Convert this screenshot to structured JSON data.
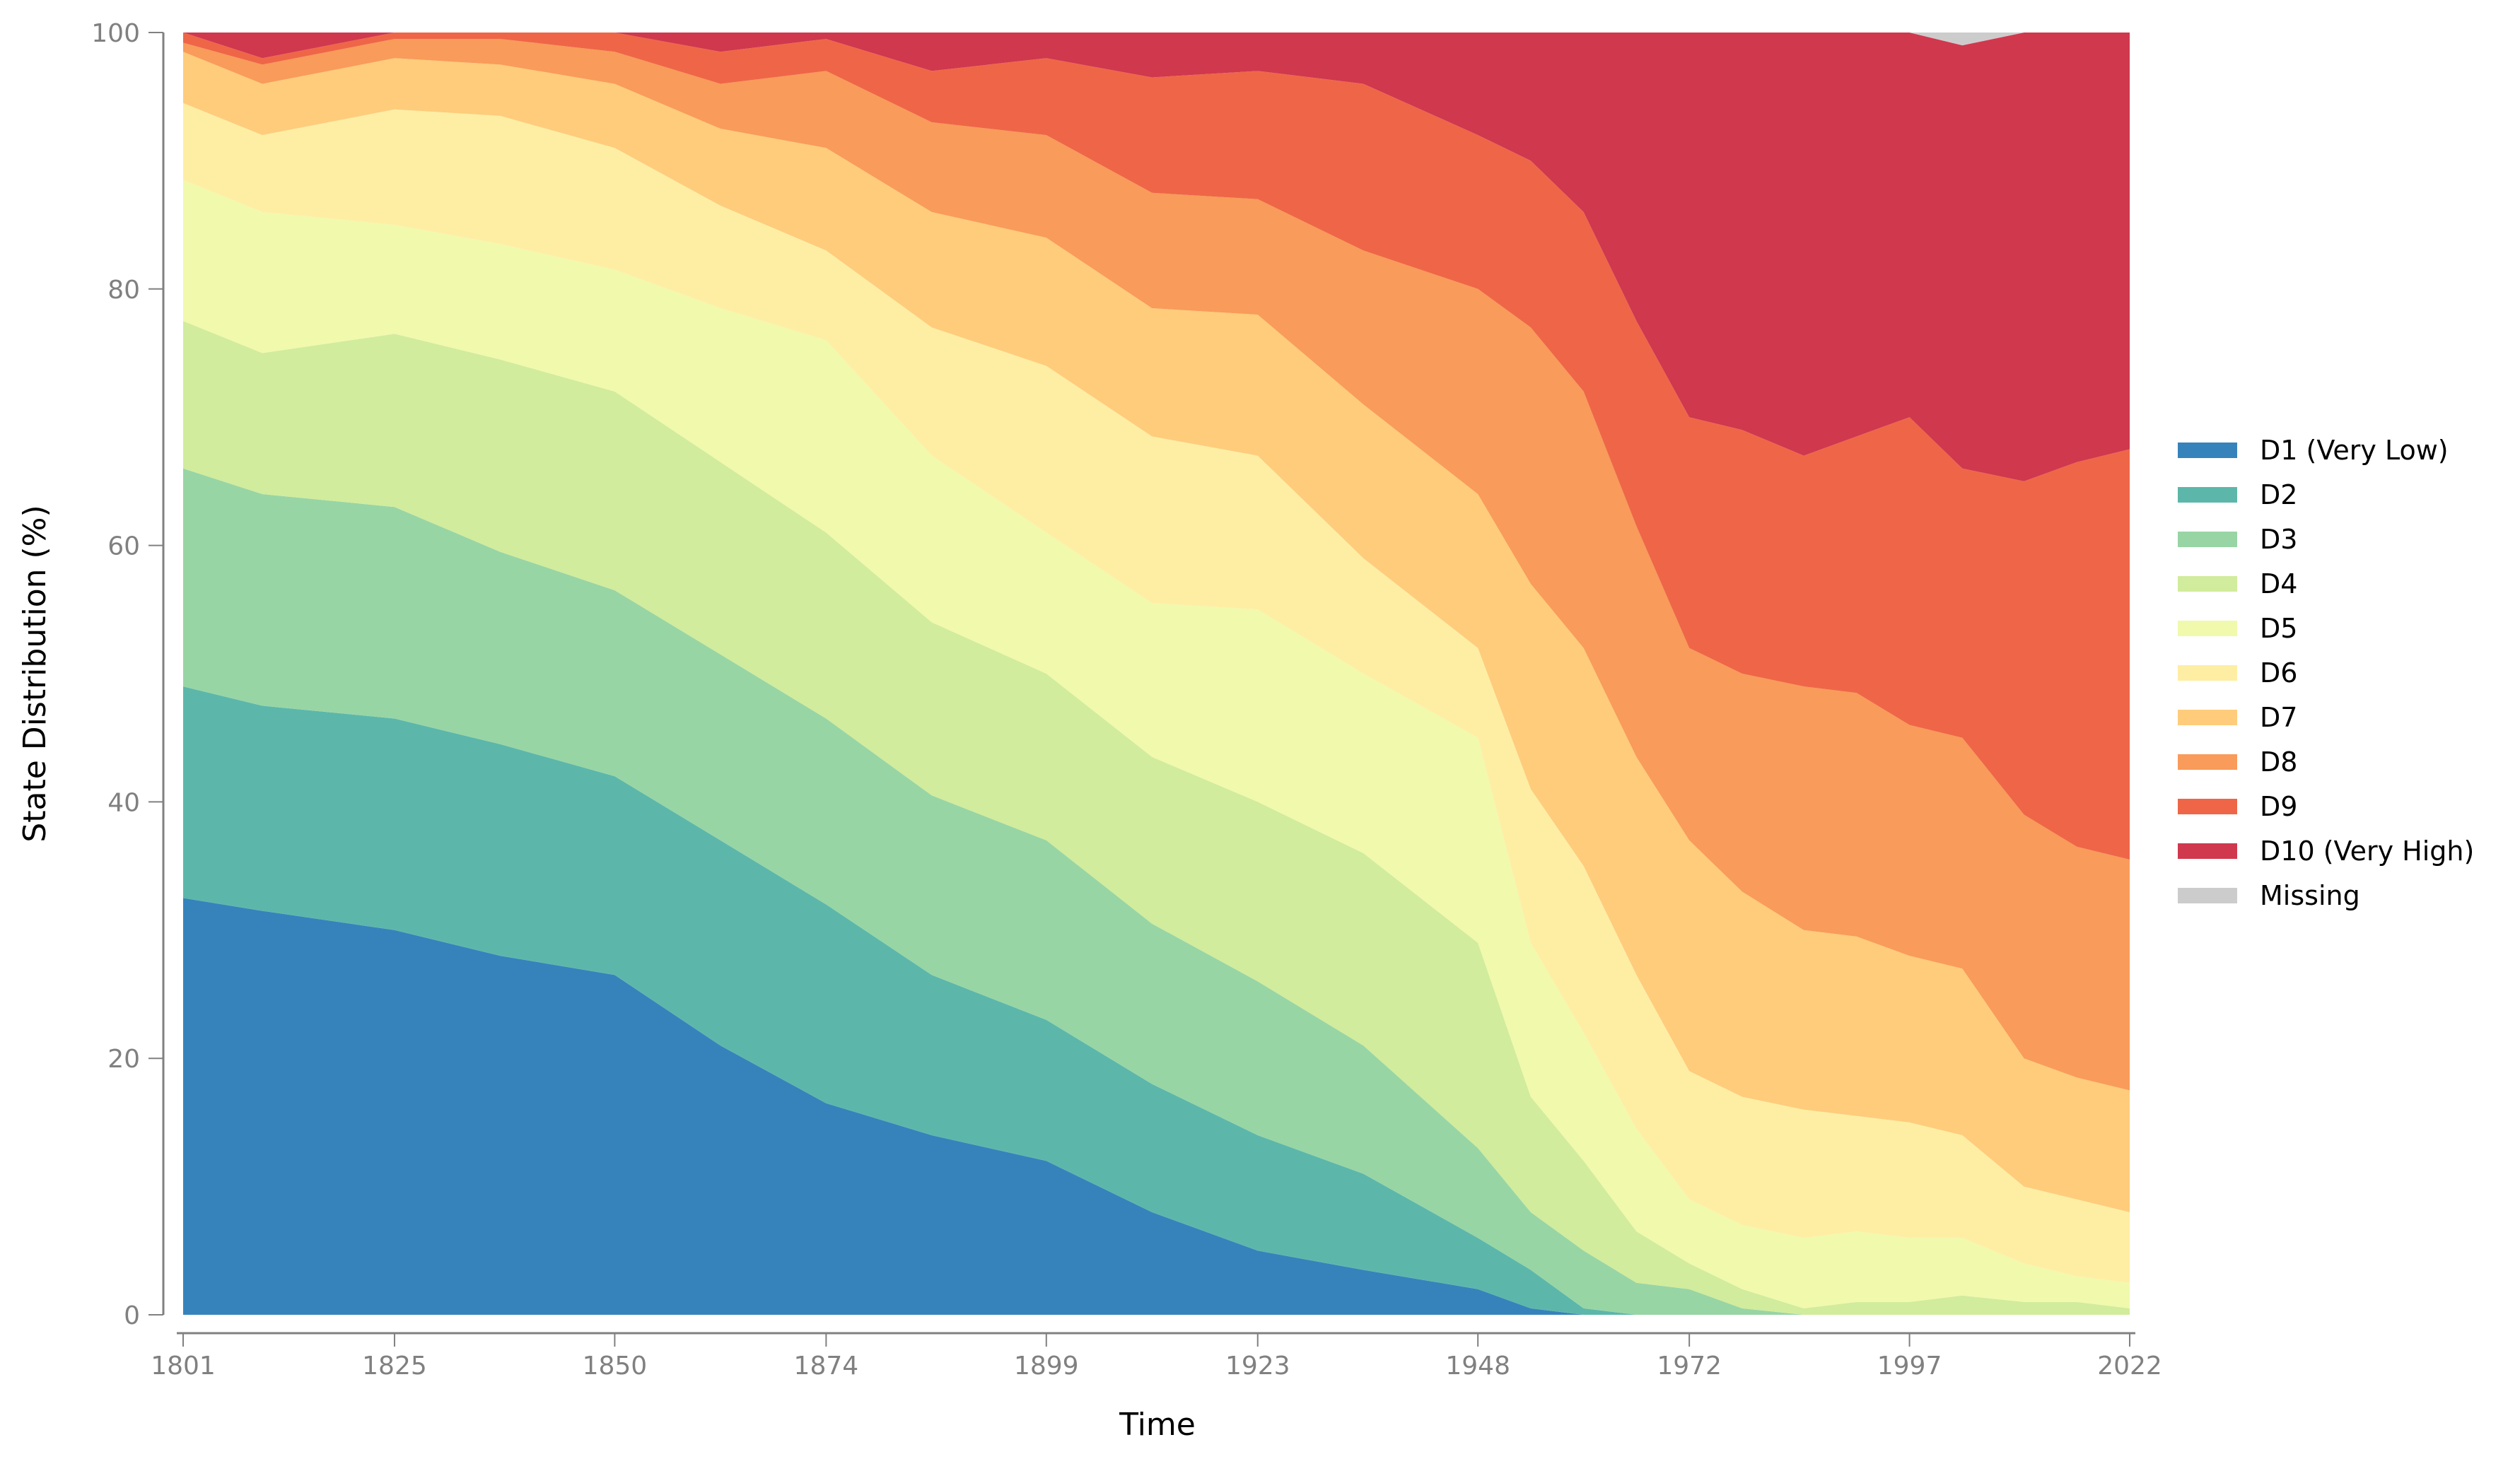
{
  "chart_data": {
    "type": "area",
    "stacked": true,
    "xlabel": "Time",
    "ylabel": "State Distribution (%)",
    "ylim": [
      0,
      100
    ],
    "xlim": [
      1801,
      2022
    ],
    "yticks": [
      0,
      20,
      40,
      60,
      80,
      100
    ],
    "xticks": [
      1801,
      1825,
      1850,
      1874,
      1899,
      1923,
      1948,
      1972,
      1997,
      2022
    ],
    "grid": false,
    "legend_position": "right",
    "x": [
      1801,
      1810,
      1825,
      1837,
      1850,
      1862,
      1874,
      1886,
      1899,
      1911,
      1923,
      1935,
      1948,
      1954,
      1960,
      1966,
      1972,
      1978,
      1985,
      1991,
      1997,
      2003,
      2010,
      2016,
      2022
    ],
    "cumulative_note": "values below are per-layer shares (%) read from cumulative boundaries",
    "series": [
      {
        "name": "D1 (Very Low)",
        "color": "#3683bb",
        "values": [
          32.5,
          31.5,
          30,
          28,
          26.5,
          21,
          16.5,
          14,
          12,
          8,
          5,
          3.5,
          2,
          0.5,
          0,
          0,
          0,
          0,
          0,
          0,
          0,
          0,
          0,
          0,
          0
        ]
      },
      {
        "name": "D2",
        "color": "#5cb7aa",
        "values": [
          16.5,
          16,
          16.5,
          16.5,
          15.5,
          16,
          15.5,
          12.5,
          11,
          10,
          9,
          7.5,
          4,
          3,
          0.5,
          0,
          0,
          0,
          0,
          0,
          0,
          0,
          0,
          0,
          0
        ]
      },
      {
        "name": "D3",
        "color": "#98d5a4",
        "values": [
          17,
          16.5,
          16.5,
          15,
          14.5,
          14.5,
          14.5,
          14,
          14,
          12.5,
          12,
          10,
          7,
          4.5,
          4.5,
          2.5,
          2,
          0.5,
          0,
          0,
          0,
          0,
          0,
          0,
          0
        ]
      },
      {
        "name": "D4",
        "color": "#d1ec9c",
        "values": [
          11.5,
          11,
          13.5,
          15,
          15.5,
          15,
          14.5,
          13.5,
          13,
          13,
          14,
          15,
          16,
          9,
          7,
          4,
          2,
          1.5,
          0.5,
          1,
          1,
          1.5,
          1,
          1,
          0.5
        ]
      },
      {
        "name": "D5",
        "color": "#f1f9ad",
        "values": [
          11,
          11,
          8.5,
          9,
          9.5,
          12,
          15,
          13,
          11,
          12,
          15,
          14,
          16,
          12,
          10,
          8,
          5,
          5,
          5.5,
          5.5,
          5,
          4.5,
          3,
          2,
          2
        ]
      },
      {
        "name": "D6",
        "color": "#feeea4",
        "values": [
          6,
          6,
          9,
          10,
          9.5,
          8,
          7,
          10,
          13,
          13,
          12,
          9,
          7,
          12,
          13,
          12,
          10,
          10,
          10,
          9,
          9,
          8,
          6,
          6,
          5.5
        ]
      },
      {
        "name": "D7",
        "color": "#fecc7b",
        "values": [
          4,
          4,
          4,
          4,
          5,
          6,
          8,
          9,
          10,
          10,
          11,
          12,
          12,
          16,
          17,
          17,
          18,
          16,
          14,
          14,
          13,
          13,
          10,
          9.5,
          9.5
        ]
      },
      {
        "name": "D8",
        "color": "#f99b5a",
        "values": [
          0.7,
          1.5,
          1.5,
          2,
          2.5,
          3.5,
          6,
          7,
          8,
          9,
          9,
          12,
          16,
          20,
          20,
          18,
          15,
          17,
          19,
          19,
          18,
          18,
          19,
          18,
          18
        ]
      },
      {
        "name": "D9",
        "color": "#ee6647",
        "values": [
          0.8,
          0.5,
          0.5,
          0.5,
          1.5,
          2.5,
          2.5,
          4,
          6,
          9,
          10,
          13,
          12,
          13,
          14,
          16,
          18,
          19,
          18,
          20,
          24,
          21,
          26,
          30,
          32
        ]
      },
      {
        "name": "D10 (Very High)",
        "color": "#d0384e",
        "values": [
          0,
          0,
          0,
          0,
          0,
          1.5,
          0.5,
          3,
          2,
          3.5,
          3,
          4,
          8,
          10,
          14,
          22.5,
          30,
          31,
          33,
          31.5,
          30,
          33,
          35,
          33.5,
          32.5
        ]
      },
      {
        "name": "Missing",
        "color": "#cccccc",
        "values": [
          0,
          0,
          0,
          0,
          0,
          0,
          0,
          0,
          0,
          0,
          0,
          0,
          0,
          0,
          0,
          0,
          0,
          0,
          0,
          0,
          0,
          1,
          0,
          0,
          0
        ]
      }
    ]
  },
  "axes": {
    "xlabel": "Time",
    "ylabel": "State Distribution (%)",
    "yticks": [
      "0",
      "20",
      "40",
      "60",
      "80",
      "100"
    ],
    "xticks": [
      "1801",
      "1825",
      "1850",
      "1874",
      "1899",
      "1923",
      "1948",
      "1972",
      "1997",
      "2022"
    ]
  },
  "legend": {
    "items": [
      {
        "label": "D1 (Very Low)",
        "color": "#3683bb"
      },
      {
        "label": "D2",
        "color": "#5cb7aa"
      },
      {
        "label": "D3",
        "color": "#98d5a4"
      },
      {
        "label": "D4",
        "color": "#d1ec9c"
      },
      {
        "label": "D5",
        "color": "#f1f9ad"
      },
      {
        "label": "D6",
        "color": "#feeea4"
      },
      {
        "label": "D7",
        "color": "#fecc7b"
      },
      {
        "label": "D8",
        "color": "#f99b5a"
      },
      {
        "label": "D9",
        "color": "#ee6647"
      },
      {
        "label": "D10 (Very High)",
        "color": "#d0384e"
      },
      {
        "label": "Missing",
        "color": "#cccccc"
      }
    ]
  }
}
